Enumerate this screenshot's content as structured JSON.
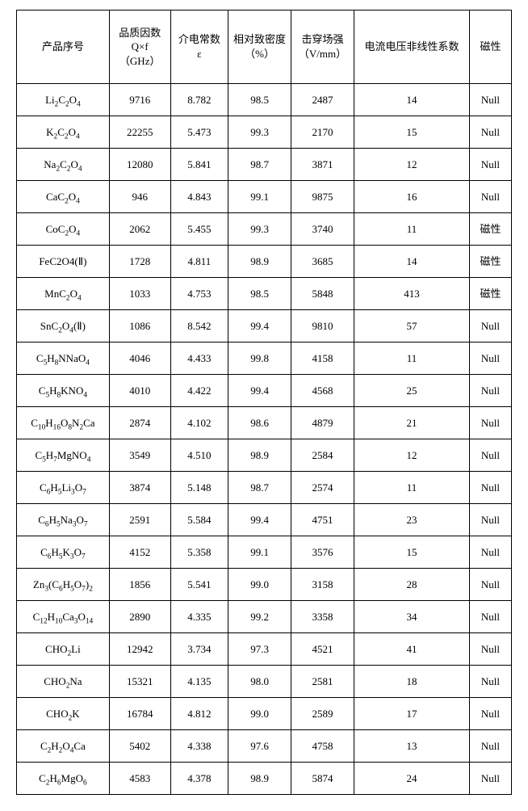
{
  "columns": [
    {
      "key": "product",
      "class": "c-prod",
      "lines": [
        "产品序号"
      ]
    },
    {
      "key": "qf",
      "class": "c-qf",
      "lines": [
        "品质因数",
        "Q×f",
        "（GHz）"
      ]
    },
    {
      "key": "eps",
      "class": "c-eps",
      "lines": [
        "介电常数",
        "ε"
      ]
    },
    {
      "key": "density",
      "class": "c-dens",
      "lines": [
        "相对致密度",
        "（%）"
      ]
    },
    {
      "key": "breakdown",
      "class": "c-bd",
      "lines": [
        "击穿场强",
        "（V/mm）"
      ]
    },
    {
      "key": "iv",
      "class": "c-iv",
      "lines": [
        "电流电压非线性系数"
      ]
    },
    {
      "key": "mag",
      "class": "c-mag",
      "lines": [
        "磁性"
      ]
    }
  ],
  "rows": [
    {
      "formula_html": "Li<sub>2</sub>C<sub>2</sub>O<sub>4</sub>",
      "qf": "9716",
      "eps": "8.782",
      "density": "98.5",
      "breakdown": "2487",
      "iv": "14",
      "mag": "Null"
    },
    {
      "formula_html": "K<sub>2</sub>C<sub>2</sub>O<sub>4</sub>",
      "qf": "22255",
      "eps": "5.473",
      "density": "99.3",
      "breakdown": "2170",
      "iv": "15",
      "mag": "Null"
    },
    {
      "formula_html": "Na<sub>2</sub>C<sub>2</sub>O<sub>4</sub>",
      "qf": "12080",
      "eps": "5.841",
      "density": "98.7",
      "breakdown": "3871",
      "iv": "12",
      "mag": "Null"
    },
    {
      "formula_html": "CaC<sub>2</sub>O<sub>4</sub>",
      "qf": "946",
      "eps": "4.843",
      "density": "99.1",
      "breakdown": "9875",
      "iv": "16",
      "mag": "Null"
    },
    {
      "formula_html": "CoC<sub>2</sub>O<sub>4</sub>",
      "qf": "2062",
      "eps": "5.455",
      "density": "99.3",
      "breakdown": "3740",
      "iv": "11",
      "mag": "磁性"
    },
    {
      "formula_html": "FeC2O4(Ⅱ)",
      "qf": "1728",
      "eps": "4.811",
      "density": "98.9",
      "breakdown": "3685",
      "iv": "14",
      "mag": "磁性"
    },
    {
      "formula_html": "MnC<sub>2</sub>O<sub>4</sub>",
      "qf": "1033",
      "eps": "4.753",
      "density": "98.5",
      "breakdown": "5848",
      "iv": "413",
      "mag": "磁性"
    },
    {
      "formula_html": "SnC<sub>2</sub>O<sub>4</sub>(Ⅱ)",
      "qf": "1086",
      "eps": "8.542",
      "density": "99.4",
      "breakdown": "9810",
      "iv": "57",
      "mag": "Null"
    },
    {
      "formula_html": "C<sub>5</sub>H<sub>8</sub>NNaO<sub>4</sub>",
      "qf": "4046",
      "eps": "4.433",
      "density": "99.8",
      "breakdown": "4158",
      "iv": "11",
      "mag": "Null"
    },
    {
      "formula_html": "C<sub>5</sub>H<sub>8</sub>KNO<sub>4</sub>",
      "qf": "4010",
      "eps": "4.422",
      "density": "99.4",
      "breakdown": "4568",
      "iv": "25",
      "mag": "Null"
    },
    {
      "formula_html": "C<sub>10</sub>H<sub>16</sub>O<sub>8</sub>N<sub>2</sub>Ca",
      "qf": "2874",
      "eps": "4.102",
      "density": "98.6",
      "breakdown": "4879",
      "iv": "21",
      "mag": "Null"
    },
    {
      "formula_html": "C<sub>5</sub>H<sub>7</sub>MgNO<sub>4</sub>",
      "qf": "3549",
      "eps": "4.510",
      "density": "98.9",
      "breakdown": "2584",
      "iv": "12",
      "mag": "Null"
    },
    {
      "formula_html": "C<sub>6</sub>H<sub>5</sub>Li<sub>3</sub>O<sub>7</sub>",
      "qf": "3874",
      "eps": "5.148",
      "density": "98.7",
      "breakdown": "2574",
      "iv": "11",
      "mag": "Null"
    },
    {
      "formula_html": "C<sub>6</sub>H<sub>5</sub>Na<sub>3</sub>O<sub>7</sub>",
      "qf": "2591",
      "eps": "5.584",
      "density": "99.4",
      "breakdown": "4751",
      "iv": "23",
      "mag": "Null"
    },
    {
      "formula_html": "C<sub>6</sub>H<sub>5</sub>K<sub>3</sub>O<sub>7</sub>",
      "qf": "4152",
      "eps": "5.358",
      "density": "99.1",
      "breakdown": "3576",
      "iv": "15",
      "mag": "Null"
    },
    {
      "formula_html": "Zn<sub>3</sub>(C<sub>6</sub>H<sub>5</sub>O<sub>7</sub>)<sub>2</sub>",
      "qf": "1856",
      "eps": "5.541",
      "density": "99.0",
      "breakdown": "3158",
      "iv": "28",
      "mag": "Null"
    },
    {
      "formula_html": "C<sub>12</sub>H<sub>10</sub>Ca<sub>3</sub>O<sub>14</sub>",
      "qf": "2890",
      "eps": "4.335",
      "density": "99.2",
      "breakdown": "3358",
      "iv": "34",
      "mag": "Null"
    },
    {
      "formula_html": "CHO<sub>2</sub>Li",
      "qf": "12942",
      "eps": "3.734",
      "density": "97.3",
      "breakdown": "4521",
      "iv": "41",
      "mag": "Null"
    },
    {
      "formula_html": "CHO<sub>2</sub>Na",
      "qf": "15321",
      "eps": "4.135",
      "density": "98.0",
      "breakdown": "2581",
      "iv": "18",
      "mag": "Null"
    },
    {
      "formula_html": "CHO<sub>2</sub>K",
      "qf": "16784",
      "eps": "4.812",
      "density": "99.0",
      "breakdown": "2589",
      "iv": "17",
      "mag": "Null"
    },
    {
      "formula_html": "C<sub>2</sub>H<sub>2</sub>O<sub>4</sub>Ca",
      "qf": "5402",
      "eps": "4.338",
      "density": "97.6",
      "breakdown": "4758",
      "iv": "13",
      "mag": "Null"
    },
    {
      "formula_html": "C<sub>2</sub>H<sub>6</sub>MgO<sub>6</sub>",
      "qf": "4583",
      "eps": "4.378",
      "density": "98.9",
      "breakdown": "5874",
      "iv": "24",
      "mag": "Null"
    }
  ]
}
